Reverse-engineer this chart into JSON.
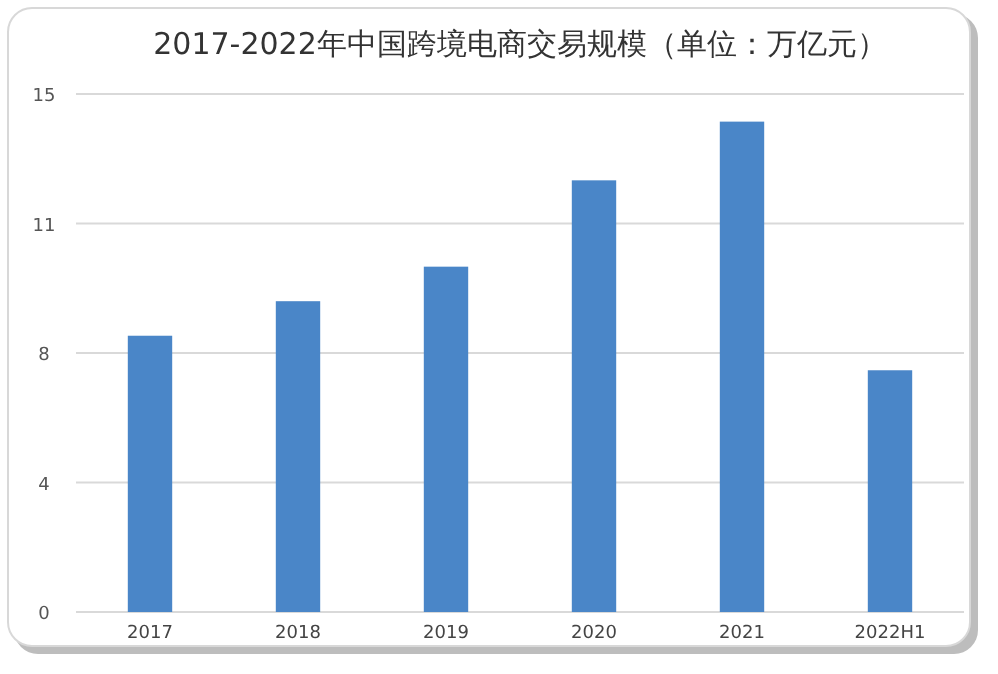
{
  "chart_data": {
    "type": "bar",
    "title": "2017-2022年中国跨境电商交易规模（单位：万亿元）",
    "categories": [
      "2017",
      "2018",
      "2019",
      "2020",
      "2021",
      "2022H1"
    ],
    "values": [
      8.0,
      9.0,
      10.0,
      12.5,
      14.2,
      7.0
    ],
    "color": "#4a86c8",
    "ylim": [
      0,
      15
    ],
    "yticks": [
      0,
      {
        "value": 3.75,
        "label": "4"
      },
      {
        "value": 7.5,
        "label": "8"
      },
      {
        "value": 11.25,
        "label": "11"
      },
      15
    ],
    "grid": "y"
  }
}
